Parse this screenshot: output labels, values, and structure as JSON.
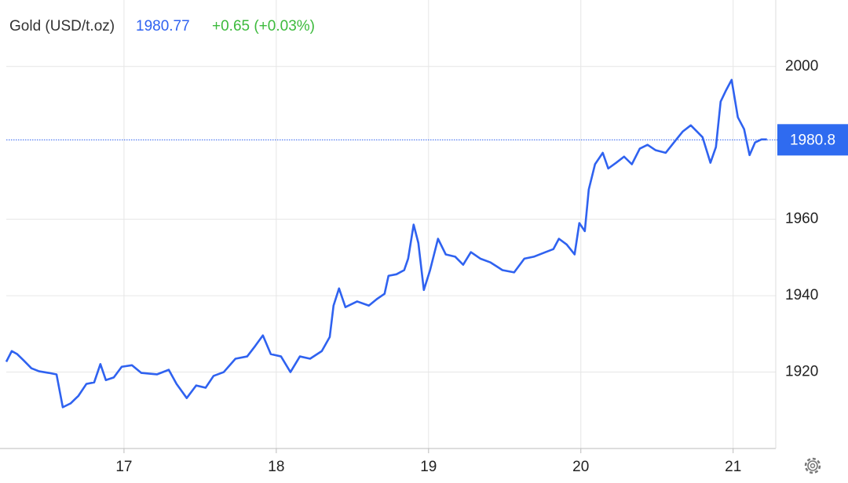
{
  "chart_data": {
    "type": "line",
    "title": "Gold (USD/t.oz)",
    "last_value": 1980.77,
    "change_label": "+0.65 (+0.03%)",
    "price_marker": 1980.8,
    "xlim": [
      16.227,
      21.28
    ],
    "ylim": [
      1900,
      2017.4
    ],
    "xticks": [
      17,
      18,
      19,
      20,
      21
    ],
    "yticks": [
      1920,
      1940,
      1960,
      2000
    ],
    "grid": true,
    "series": [
      {
        "name": "Gold",
        "color": "#2f62f0",
        "x": [
          16.227,
          16.263,
          16.299,
          16.34,
          16.392,
          16.443,
          16.505,
          16.557,
          16.598,
          16.649,
          16.701,
          16.753,
          16.804,
          16.845,
          16.881,
          16.933,
          16.985,
          17.052,
          17.113,
          17.216,
          17.294,
          17.345,
          17.412,
          17.474,
          17.536,
          17.588,
          17.655,
          17.732,
          17.809,
          17.861,
          17.912,
          17.964,
          18.031,
          18.093,
          18.155,
          18.222,
          18.299,
          18.351,
          18.376,
          18.412,
          18.454,
          18.531,
          18.608,
          18.66,
          18.711,
          18.737,
          18.789,
          18.84,
          18.866,
          18.902,
          18.933,
          18.969,
          19.01,
          19.062,
          19.113,
          19.175,
          19.227,
          19.278,
          19.34,
          19.407,
          19.485,
          19.562,
          19.629,
          19.691,
          19.768,
          19.82,
          19.856,
          19.907,
          19.959,
          19.99,
          20.026,
          20.052,
          20.093,
          20.144,
          20.18,
          20.232,
          20.284,
          20.335,
          20.387,
          20.438,
          20.49,
          20.557,
          20.619,
          20.67,
          20.722,
          20.799,
          20.851,
          20.887,
          20.918,
          20.954,
          20.99,
          21.031,
          21.072,
          21.108,
          21.144,
          21.186,
          21.222
        ],
        "values": [
          1922.7,
          1925.5,
          1924.7,
          1923.1,
          1921.0,
          1920.2,
          1919.8,
          1919.4,
          1910.8,
          1911.8,
          1913.8,
          1916.9,
          1917.3,
          1922.1,
          1917.9,
          1918.6,
          1921.4,
          1921.8,
          1919.8,
          1919.4,
          1920.6,
          1916.9,
          1913.2,
          1916.5,
          1915.9,
          1919.0,
          1920.0,
          1923.5,
          1924.1,
          1926.8,
          1929.6,
          1924.7,
          1924.1,
          1920.0,
          1924.1,
          1923.5,
          1925.5,
          1929.2,
          1937.4,
          1941.9,
          1937.0,
          1938.5,
          1937.4,
          1939.1,
          1940.5,
          1945.2,
          1945.6,
          1946.7,
          1949.7,
          1958.6,
          1953.8,
          1941.5,
          1946.7,
          1954.9,
          1950.8,
          1950.2,
          1948.1,
          1951.4,
          1949.7,
          1948.7,
          1946.7,
          1946.1,
          1949.7,
          1950.2,
          1951.4,
          1952.2,
          1954.9,
          1953.4,
          1950.8,
          1959.0,
          1956.9,
          1967.8,
          1974.4,
          1977.4,
          1973.3,
          1974.8,
          1976.4,
          1974.4,
          1978.5,
          1979.5,
          1978.1,
          1977.4,
          1980.5,
          1983.0,
          1984.6,
          1981.5,
          1974.8,
          1978.9,
          1990.8,
          1993.8,
          1996.5,
          1986.7,
          1983.6,
          1976.8,
          1980.1,
          1980.9,
          1980.9
        ]
      }
    ]
  }
}
